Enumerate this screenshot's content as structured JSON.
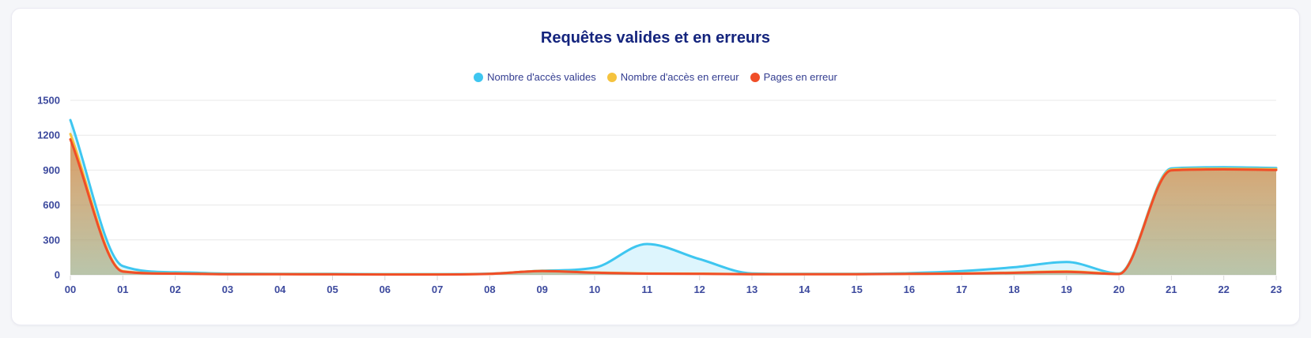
{
  "page": {
    "background_color": "#F5F6F9",
    "card_background": "#FFFFFF"
  },
  "chart_data": {
    "type": "area",
    "title": "Requêtes valides et en erreurs",
    "title_color": "#14247D",
    "legend_position": "top",
    "grid": "horizontal",
    "xlabel": "",
    "ylabel": "",
    "ylim": [
      0,
      1500
    ],
    "y_ticks": [
      0,
      300,
      600,
      900,
      1200,
      1500
    ],
    "x_labels": [
      "00",
      "01",
      "02",
      "03",
      "04",
      "05",
      "06",
      "07",
      "08",
      "09",
      "10",
      "11",
      "12",
      "13",
      "14",
      "15",
      "16",
      "17",
      "18",
      "19",
      "20",
      "21",
      "22",
      "23"
    ],
    "axis_label_color": "#3D4A9E",
    "legend_text_color": "#333D90",
    "series": [
      {
        "name": "Nombre d'accès valides",
        "color": "#3EC6F0",
        "values": [
          1330,
          75,
          22,
          10,
          8,
          8,
          6,
          6,
          10,
          35,
          62,
          265,
          135,
          12,
          8,
          8,
          14,
          32,
          65,
          110,
          12,
          915,
          925,
          918
        ]
      },
      {
        "name": "Nombre d'accès en erreur",
        "color": "#F5C33E",
        "values": [
          1210,
          32,
          12,
          6,
          6,
          5,
          4,
          4,
          9,
          33,
          20,
          12,
          10,
          6,
          6,
          6,
          9,
          12,
          20,
          30,
          9,
          905,
          912,
          908
        ]
      },
      {
        "name": "Pages en erreur",
        "color": "#F04E28",
        "values": [
          1165,
          28,
          10,
          5,
          5,
          4,
          3,
          3,
          8,
          32,
          18,
          10,
          9,
          5,
          5,
          5,
          8,
          10,
          17,
          25,
          7,
          898,
          906,
          901
        ]
      }
    ]
  }
}
